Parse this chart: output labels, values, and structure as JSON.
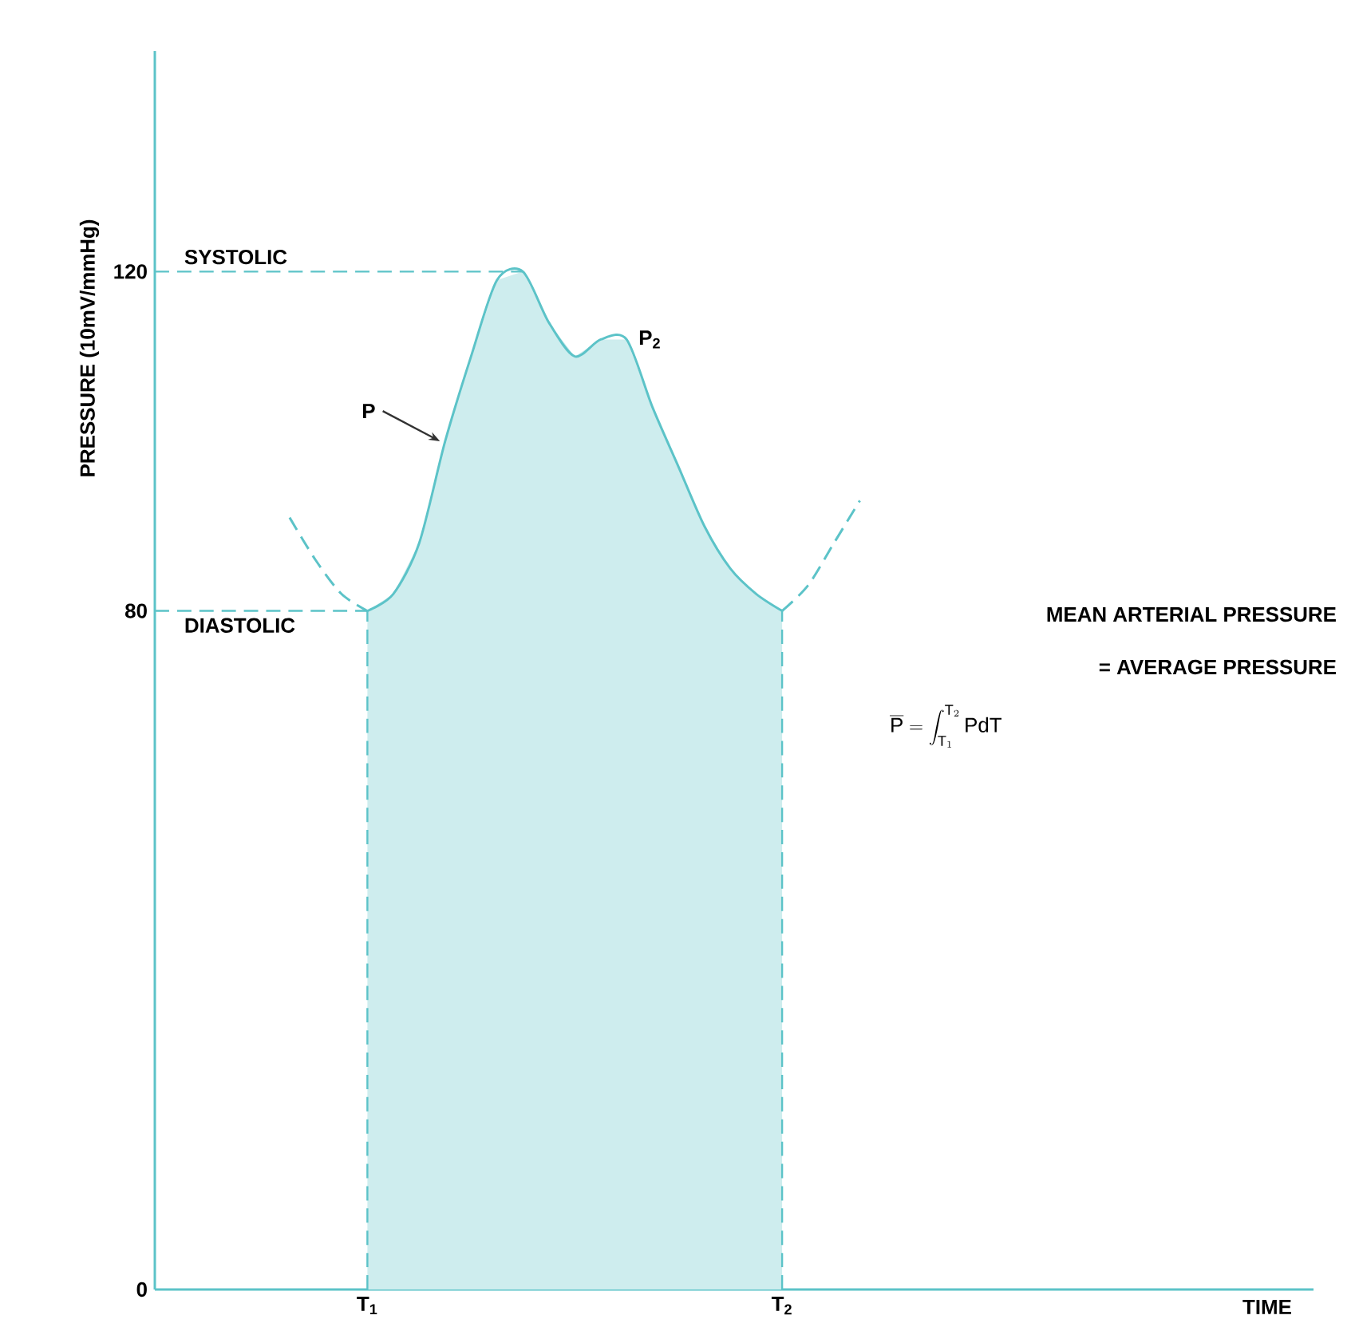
{
  "chart_data": {
    "type": "line",
    "ylabel": "PRESSURE (10mV/mmHg)",
    "xlabel": "TIME",
    "categories": [
      null,
      null,
      null,
      null,
      null,
      null,
      null,
      null,
      "T$_{1}$",
      null,
      null,
      null,
      null,
      null,
      null,
      null,
      null,
      null,
      null,
      null,
      null,
      null,
      null,
      null,
      "T$_{2}$",
      null,
      null,
      null,
      null,
      null,
      null,
      null,
      null,
      null,
      null,
      null,
      null,
      null,
      null,
      null,
      null,
      null,
      null,
      null,
      null
    ],
    "ylim": [
      0,
      146
    ],
    "yticks": [
      0,
      80,
      120
    ],
    "series": [
      {
        "type": "area",
        "color": "#5cc3c8",
        "line_style": "solid",
        "values": [
          null,
          null,
          null,
          null,
          null,
          null,
          null,
          null,
          80,
          82,
          88,
          100,
          110,
          119,
          120,
          114,
          110,
          112,
          112,
          104,
          97,
          90,
          85,
          82,
          80,
          null,
          null,
          null,
          null,
          null,
          null,
          null,
          null,
          null,
          null,
          null,
          null,
          null,
          null,
          null,
          null,
          null,
          null,
          null,
          null
        ]
      },
      {
        "color": "#5cc3c8",
        "line_style": "dashed",
        "values": [
          null,
          null,
          null,
          null,
          null,
          91,
          86,
          82,
          80,
          null,
          null,
          null,
          null,
          null,
          null,
          null,
          null,
          null,
          null,
          null,
          null,
          null,
          null,
          null,
          null,
          null,
          null,
          null,
          null,
          null,
          null,
          null,
          null,
          null,
          null,
          null,
          null,
          null,
          null,
          null,
          null,
          null,
          null,
          null,
          null
        ]
      },
      {
        "color": "#5cc3c8",
        "line_style": "dashed",
        "values": [
          null,
          null,
          null,
          null,
          null,
          null,
          null,
          null,
          null,
          null,
          null,
          null,
          null,
          null,
          null,
          null,
          null,
          null,
          null,
          null,
          null,
          null,
          null,
          null,
          80,
          83,
          88,
          93,
          null,
          null,
          null,
          null,
          null,
          null,
          null,
          null,
          null,
          null,
          null,
          null,
          null,
          null,
          null,
          null,
          null
        ]
      }
    ],
    "ref_lines": [
      {
        "axis": "y",
        "value": 120,
        "label": "SYSTOLIC",
        "line_style": "dashed",
        "color": "#5cc3c8"
      },
      {
        "axis": "y",
        "value": 80,
        "label": "DIASTOLIC",
        "line_style": "dashed",
        "color": "#5cc3c8"
      },
      {
        "axis": "x",
        "value": "T$_{1}$",
        "line_style": "dashed",
        "color": "#5cc3c8"
      },
      {
        "axis": "x",
        "value": "T$_{2}$",
        "line_style": "dashed",
        "color": "#5cc3c8"
      }
    ],
    "annotations": [
      "P",
      "P$_{2}$",
      "MEAN ARTERIAL PRESSURE",
      "= AVERAGE PRESSURE",
      "\\overline{\\mathrm{P}} = \\int_{\\mathrm{T}_{1}}^{\\mathrm{T}_{2}} \\mathrm{PdT}"
    ],
    "marker": "none"
  }
}
